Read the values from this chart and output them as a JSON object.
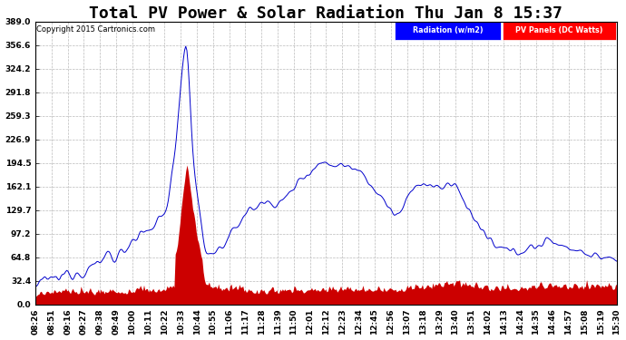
{
  "title": "Total PV Power & Solar Radiation Thu Jan 8 15:37",
  "copyright": "Copyright 2015 Cartronics.com",
  "legend_radiation": "Radiation (w/m2)",
  "legend_pv": "PV Panels (DC Watts)",
  "yticks": [
    0.0,
    32.4,
    64.8,
    97.2,
    129.7,
    162.1,
    194.5,
    226.9,
    259.3,
    291.8,
    324.2,
    356.6,
    389.0
  ],
  "ymin": 0.0,
  "ymax": 389.0,
  "background_color": "#ffffff",
  "grid_color": "#bbbbbb",
  "radiation_color": "#0000cc",
  "pv_color": "#cc0000",
  "x_times": [
    "08:26",
    "08:51",
    "09:16",
    "09:27",
    "09:38",
    "09:49",
    "10:00",
    "10:11",
    "10:22",
    "10:33",
    "10:44",
    "10:55",
    "11:06",
    "11:17",
    "11:28",
    "11:39",
    "11:50",
    "12:01",
    "12:12",
    "12:23",
    "12:34",
    "12:45",
    "12:56",
    "13:07",
    "13:18",
    "13:29",
    "13:40",
    "13:51",
    "14:02",
    "14:13",
    "14:24",
    "14:35",
    "14:46",
    "14:57",
    "15:08",
    "15:19",
    "15:30"
  ],
  "title_fontsize": 13,
  "tick_fontsize": 6.5
}
